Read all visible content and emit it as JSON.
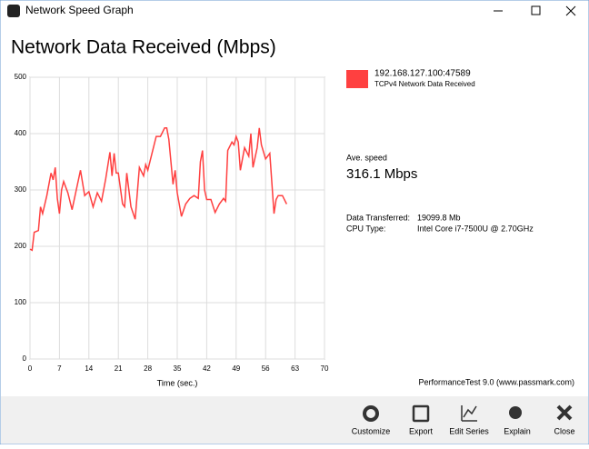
{
  "window": {
    "title": "Network Speed Graph"
  },
  "chart_data": {
    "type": "line",
    "title": "Network Data Received (Mbps)",
    "x_label": "Time (sec.)",
    "x": [
      0,
      0.5,
      1,
      2,
      2.5,
      3,
      4,
      5,
      5.5,
      6,
      6.5,
      7,
      7.5,
      8,
      9,
      10,
      11,
      12,
      13,
      14,
      15,
      16,
      17,
      18,
      19,
      19.5,
      20,
      20.5,
      21,
      22,
      22.5,
      23,
      24,
      25,
      26,
      27,
      27.5,
      28,
      29,
      30,
      31,
      32,
      32.5,
      33,
      34,
      34.5,
      35,
      36,
      37,
      38,
      39,
      40,
      40.5,
      41,
      41.5,
      42,
      43,
      44,
      45,
      46,
      46.5,
      47,
      48,
      48.5,
      49,
      49.5,
      50,
      51,
      52,
      52.5,
      53,
      54,
      54.5,
      55,
      56,
      57,
      58,
      58.5,
      59,
      60,
      61
    ],
    "series": [
      {
        "name": "192.168.127.100:47589",
        "description": "TCPv4 Network Data Received",
        "color": "#ff4040",
        "values": [
          195,
          193,
          225,
          228,
          270,
          258,
          290,
          330,
          318,
          340,
          285,
          258,
          300,
          315,
          295,
          265,
          300,
          335,
          290,
          297,
          270,
          295,
          280,
          320,
          367,
          325,
          365,
          330,
          330,
          275,
          270,
          330,
          270,
          248,
          340,
          325,
          345,
          335,
          365,
          395,
          395,
          410,
          410,
          390,
          310,
          335,
          295,
          253,
          275,
          285,
          290,
          285,
          350,
          370,
          300,
          283,
          283,
          260,
          275,
          285,
          280,
          370,
          385,
          380,
          395,
          385,
          335,
          375,
          360,
          400,
          340,
          375,
          410,
          380,
          355,
          365,
          258,
          283,
          290,
          290,
          275
        ]
      }
    ],
    "xlim": [
      0,
      70
    ],
    "xticks": [
      0,
      7,
      14,
      21,
      28,
      35,
      42,
      49,
      56,
      63,
      70
    ],
    "ylim": [
      0,
      500
    ],
    "yticks": [
      0,
      100,
      200,
      300,
      400,
      500
    ],
    "grid": true
  },
  "panel": {
    "avg_label": "Ave. speed",
    "avg_value": "316.1 Mbps",
    "transferred_label": "Data Transferred:",
    "transferred_value": "19099.8 Mb",
    "cpu_label": "CPU Type:",
    "cpu_value": "Intel Core i7-7500U @ 2.70GHz",
    "credit": "PerformanceTest 9.0 (www.passmark.com)"
  },
  "toolbar": {
    "buttons": [
      "Customize",
      "Export",
      "Edit Series",
      "Explain",
      "Close"
    ]
  }
}
